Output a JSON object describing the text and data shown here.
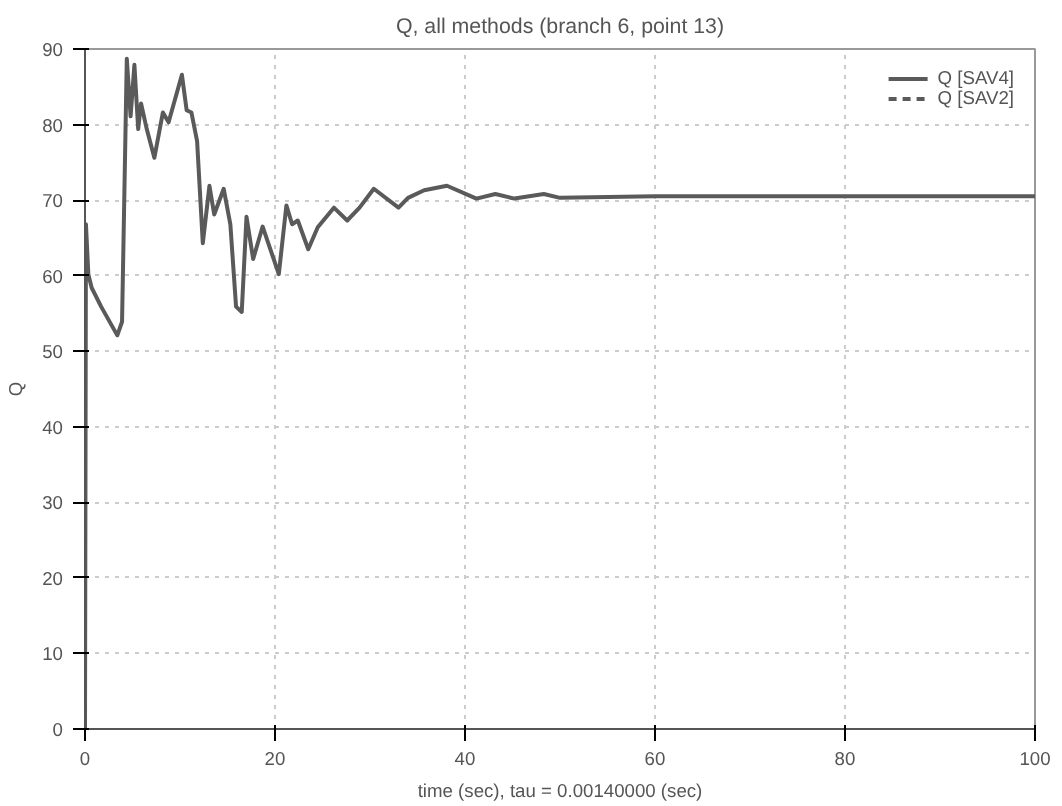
{
  "chart_data": {
    "type": "line",
    "title": "Q, all methods (branch 6, point 13)",
    "xlabel": "time (sec), tau = 0.00140000 (sec)",
    "ylabel": "Q",
    "xlim": [
      0,
      100
    ],
    "ylim": [
      0,
      90
    ],
    "xticks": [
      0,
      20,
      40,
      60,
      80,
      100
    ],
    "yticks": [
      0,
      10,
      20,
      30,
      40,
      50,
      60,
      70,
      80,
      90
    ],
    "grid": true,
    "legend": "top right",
    "series": [
      {
        "name": "Q [SAV4]",
        "color": "#5a5a5a",
        "line_style": "solid",
        "x": [
          0,
          0.1,
          0.35,
          0.7,
          1.7,
          3.4,
          3.9,
          4.4,
          4.8,
          5.2,
          5.6,
          5.9,
          6.5,
          7.3,
          8.2,
          8.8,
          10.2,
          10.7,
          11.2,
          11.8,
          12.4,
          13.1,
          13.6,
          14.6,
          15.3,
          15.9,
          16.5,
          17,
          17.7,
          18.7,
          20.4,
          21.2,
          21.8,
          22.4,
          23.5,
          24.5,
          26.2,
          27.6,
          28.9,
          30.4,
          33,
          34,
          35.7,
          38.1,
          41.2,
          43.2,
          45.2,
          48.3,
          50,
          60,
          70,
          80,
          90,
          100
        ],
        "values": [
          0,
          66.8,
          60.2,
          58.4,
          55.9,
          52.1,
          53.9,
          88.7,
          81.1,
          87.9,
          79.4,
          82.8,
          79.4,
          75.6,
          81.6,
          80.3,
          86.6,
          81.9,
          81.6,
          77.8,
          64.3,
          71.9,
          68.1,
          71.5,
          66.8,
          55.9,
          55.2,
          67.8,
          62.2,
          66.5,
          60.2,
          69.3,
          66.8,
          67.3,
          63.5,
          66.4,
          69,
          67.3,
          69,
          71.5,
          69,
          70.3,
          71.3,
          71.9,
          70.2,
          70.8,
          70.2,
          70.8,
          70.3,
          70.5,
          70.5,
          70.5,
          70.5,
          70.5
        ]
      },
      {
        "name": "Q [SAV2]",
        "color": "#5a5a5a",
        "line_style": "dashed"
      }
    ]
  }
}
